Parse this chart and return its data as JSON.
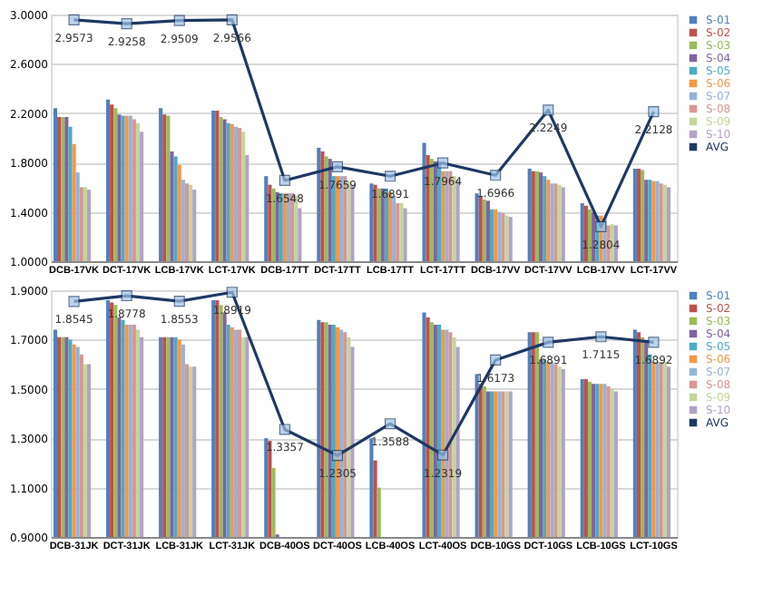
{
  "chart_data": [
    {
      "type": "bar",
      "categories": [
        "DCB-17VK",
        "DCT-17VK",
        "LCB-17VK",
        "LCT-17VK",
        "DCB-17TT",
        "DCT-17TT",
        "LCB-17TT",
        "LCT-17TT",
        "DCB-17VV",
        "DCT-17VV",
        "LCB-17VV",
        "LCT-17VV"
      ],
      "ylim": [
        1.0,
        3.0
      ],
      "yticks": [
        {
          "value": 1.0,
          "label": "1.0000"
        },
        {
          "value": 1.4,
          "label": "1.4000"
        },
        {
          "value": 1.8,
          "label": "1.8000"
        },
        {
          "value": 2.2,
          "label": "2.2000"
        },
        {
          "value": 2.6,
          "label": "2.6000"
        },
        {
          "value": 3.0,
          "label": "3.0000"
        }
      ],
      "grid": "y",
      "legend": "right",
      "series": [
        {
          "name": "S-01",
          "color": "#4f81bd",
          "values": [
            2.24,
            2.31,
            2.24,
            2.22,
            1.69,
            1.92,
            1.63,
            1.96,
            1.55,
            1.75,
            1.47,
            1.75
          ]
        },
        {
          "name": "S-02",
          "color": "#c0504d",
          "values": [
            2.17,
            2.27,
            2.19,
            2.22,
            1.62,
            1.89,
            1.62,
            1.86,
            1.53,
            1.73,
            1.45,
            1.75
          ]
        },
        {
          "name": "S-03",
          "color": "#9bbb59",
          "values": [
            2.17,
            2.24,
            2.18,
            2.17,
            1.59,
            1.85,
            1.59,
            1.83,
            1.5,
            1.73,
            1.42,
            1.74
          ]
        },
        {
          "name": "S-04",
          "color": "#8064a2",
          "values": [
            2.17,
            2.19,
            1.89,
            2.15,
            1.56,
            1.83,
            1.59,
            1.81,
            1.49,
            1.72,
            1.4,
            1.66
          ]
        },
        {
          "name": "S-05",
          "color": "#4bacc6",
          "values": [
            2.09,
            2.18,
            1.85,
            2.12,
            1.55,
            1.69,
            1.59,
            1.81,
            1.42,
            1.69,
            1.37,
            1.66
          ]
        },
        {
          "name": "S-06",
          "color": "#f79646",
          "values": [
            1.95,
            2.18,
            1.78,
            2.11,
            1.55,
            1.69,
            1.56,
            1.73,
            1.42,
            1.66,
            1.37,
            1.65
          ]
        },
        {
          "name": "S-07",
          "color": "#95b3d7",
          "values": [
            1.72,
            2.18,
            1.66,
            2.09,
            1.55,
            1.69,
            1.53,
            1.73,
            1.4,
            1.63,
            1.35,
            1.65
          ]
        },
        {
          "name": "S-08",
          "color": "#d99694",
          "values": [
            1.6,
            2.15,
            1.63,
            2.08,
            1.55,
            1.69,
            1.47,
            1.73,
            1.39,
            1.63,
            1.29,
            1.63
          ]
        },
        {
          "name": "S-09",
          "color": "#c3d69b",
          "values": [
            1.6,
            2.12,
            1.62,
            2.05,
            1.53,
            1.65,
            1.47,
            1.69,
            1.37,
            1.62,
            1.3,
            1.62
          ]
        },
        {
          "name": "S-10",
          "color": "#b2a2c7",
          "values": [
            1.58,
            2.05,
            1.58,
            1.86,
            1.43,
            1.62,
            1.43,
            1.66,
            1.36,
            1.6,
            1.29,
            1.6
          ]
        },
        {
          "name": "AVG",
          "type": "line",
          "marker": "square",
          "color": "#1f3864",
          "values": [
            2.9573,
            2.9258,
            2.9509,
            2.9566,
            1.6548,
            1.7659,
            1.6891,
            1.7964,
            1.6966,
            2.2249,
            1.2804,
            2.2128
          ],
          "value_labels": [
            "2.9573",
            "2.9258",
            "2.9509",
            "2.9566",
            "1.6548",
            "1.7659",
            "1.6891",
            "1.7964",
            "1.6966",
            "2.2249",
            "1.2804",
            "2.2128"
          ]
        }
      ]
    },
    {
      "type": "bar",
      "categories": [
        "DCB-31JK",
        "DCT-31JK",
        "LCB-31JK",
        "LCT-31JK",
        "DCB-40OS",
        "DCT-40OS",
        "LCB-40OS",
        "LCT-40OS",
        "DCB-10GS",
        "DCT-10GS",
        "LCB-10GS",
        "LCT-10GS"
      ],
      "ylim": [
        0.9,
        1.9
      ],
      "yticks": [
        {
          "value": 0.9,
          "label": "0.9000"
        },
        {
          "value": 1.1,
          "label": "1.1000"
        },
        {
          "value": 1.3,
          "label": "1.3000"
        },
        {
          "value": 1.5,
          "label": "1.5000"
        },
        {
          "value": 1.7,
          "label": "1.7000"
        },
        {
          "value": 1.9,
          "label": "1.9000"
        }
      ],
      "grid": "y",
      "legend": "right",
      "series": [
        {
          "name": "S-01",
          "color": "#4f81bd",
          "values": [
            1.74,
            1.86,
            1.71,
            1.86,
            1.3,
            1.78,
            1.3,
            1.81,
            1.56,
            1.73,
            1.54,
            1.74
          ]
        },
        {
          "name": "S-02",
          "color": "#c0504d",
          "values": [
            1.71,
            1.85,
            1.71,
            1.86,
            1.29,
            1.77,
            1.21,
            1.79,
            1.52,
            1.73,
            1.54,
            1.73
          ]
        },
        {
          "name": "S-03",
          "color": "#9bbb59",
          "values": [
            1.71,
            1.84,
            1.71,
            1.84,
            1.18,
            1.77,
            1.1,
            1.77,
            1.51,
            1.73,
            1.53,
            1.71
          ]
        },
        {
          "name": "S-04",
          "color": "#8064a2",
          "values": [
            1.71,
            1.79,
            1.71,
            1.81,
            0.91,
            1.76,
            null,
            1.76,
            1.49,
            1.62,
            1.52,
            1.69
          ]
        },
        {
          "name": "S-05",
          "color": "#4bacc6",
          "values": [
            1.7,
            1.78,
            1.71,
            1.76,
            null,
            1.76,
            null,
            1.76,
            1.49,
            1.62,
            1.52,
            1.64
          ]
        },
        {
          "name": "S-06",
          "color": "#f79646",
          "values": [
            1.68,
            1.76,
            1.7,
            1.75,
            null,
            1.75,
            null,
            1.74,
            1.49,
            1.61,
            1.52,
            1.61
          ]
        },
        {
          "name": "S-07",
          "color": "#95b3d7",
          "values": [
            1.67,
            1.76,
            1.68,
            1.74,
            null,
            1.74,
            null,
            1.74,
            1.49,
            1.61,
            1.52,
            1.61
          ]
        },
        {
          "name": "S-08",
          "color": "#d99694",
          "values": [
            1.64,
            1.76,
            1.6,
            1.74,
            null,
            1.73,
            null,
            1.73,
            1.49,
            1.6,
            1.51,
            1.61
          ]
        },
        {
          "name": "S-09",
          "color": "#c3d69b",
          "values": [
            1.6,
            1.74,
            1.59,
            1.71,
            null,
            1.71,
            null,
            1.71,
            1.49,
            1.59,
            1.5,
            1.61
          ]
        },
        {
          "name": "S-10",
          "color": "#b2a2c7",
          "values": [
            1.6,
            1.71,
            1.59,
            1.71,
            null,
            1.67,
            null,
            1.67,
            1.49,
            1.58,
            1.49,
            1.59
          ]
        },
        {
          "name": "AVG",
          "type": "line",
          "marker": "square",
          "color": "#1f3864",
          "values": [
            1.8545,
            1.8778,
            1.8553,
            1.8919,
            1.3357,
            1.2305,
            1.3588,
            1.2319,
            1.6173,
            1.6891,
            1.7115,
            1.6892
          ],
          "value_labels": [
            "1.8545",
            "1.8778",
            "1.8553",
            "1.8919",
            "1.3357",
            "1.2305",
            "1.3588",
            "1.2319",
            "1.6173",
            "1.6891",
            "1.7115",
            "1.6892"
          ]
        }
      ]
    }
  ]
}
